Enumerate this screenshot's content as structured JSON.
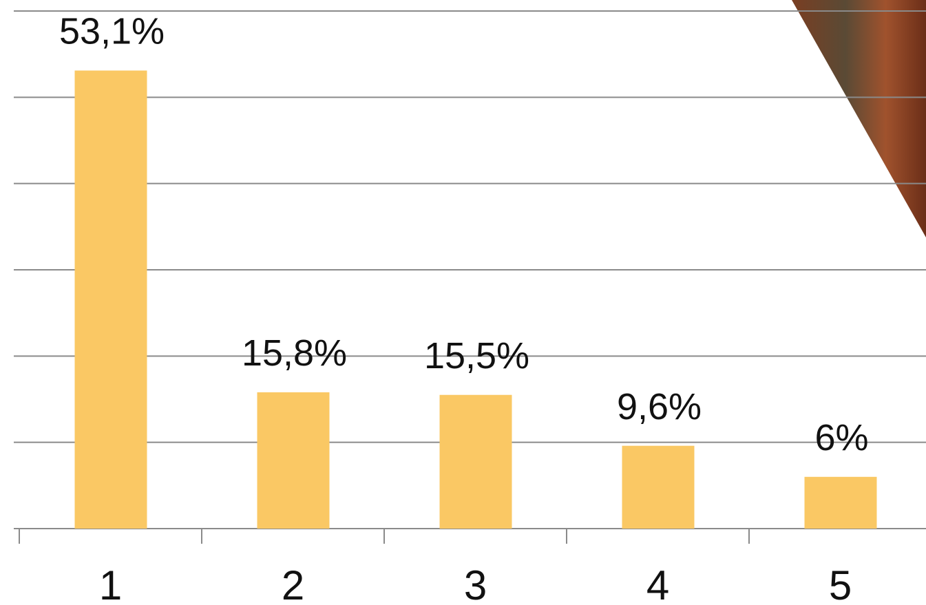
{
  "chart_data": {
    "type": "bar",
    "categories": [
      "1",
      "2",
      "3",
      "4",
      "5"
    ],
    "values": [
      53.1,
      15.8,
      15.5,
      9.6,
      6
    ],
    "value_labels": [
      "53,1%",
      "15,8%",
      "15,5%",
      "9,6%",
      "6%"
    ],
    "color": "#fac864",
    "ylim": [
      0,
      60
    ],
    "yticks": [
      0,
      10,
      20,
      30,
      40,
      50,
      60
    ],
    "grid": true
  }
}
